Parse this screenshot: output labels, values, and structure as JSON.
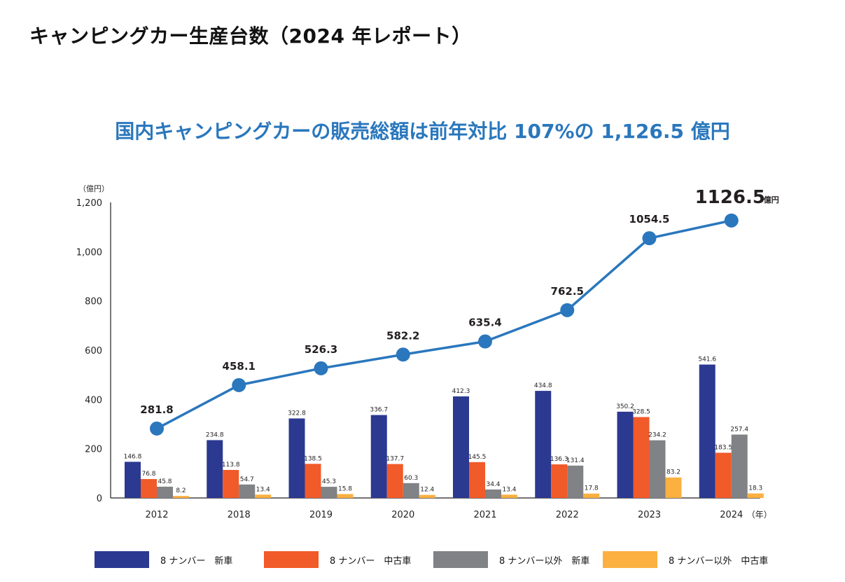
{
  "page_title": "キャンピングカー生産台数（2024 年レポート）",
  "chart_data": {
    "type": "bar+line",
    "title": "国内キャンピングカーの販売総額は前年対比 107%の 1,126.5 億円",
    "ylabel": "（億円）",
    "xlabel_unit": "（年）",
    "ylim": [
      0,
      1200
    ],
    "yticks": [
      0,
      200,
      400,
      600,
      800,
      1000,
      1200
    ],
    "ytick_labels": [
      "0",
      "200",
      "400",
      "600",
      "800",
      "1,000",
      "1,200"
    ],
    "categories": [
      "2012",
      "2018",
      "2019",
      "2020",
      "2021",
      "2022",
      "2023",
      "2024"
    ],
    "series": [
      {
        "name": "8 ナンバー　新車",
        "color": "#2b3990",
        "values": [
          146.8,
          234.8,
          322.8,
          336.7,
          412.3,
          434.8,
          350.2,
          541.6
        ],
        "labels": [
          "146.8",
          "234.8",
          "322.8",
          "336.7",
          "412.3",
          "434.8",
          "350.2",
          "541.6"
        ]
      },
      {
        "name": "8 ナンバー　中古車",
        "color": "#f15a29",
        "values": [
          76.8,
          113.8,
          138.5,
          137.7,
          145.5,
          136.3,
          328.5,
          183.5
        ],
        "labels": [
          "76.8",
          "113.8",
          "138.5",
          "137.7",
          "145.5",
          "136.3",
          "328.5",
          "183.5"
        ]
      },
      {
        "name": "8 ナンバー以外　新車",
        "color": "#808285",
        "values": [
          45.8,
          54.7,
          45.3,
          60.3,
          34.4,
          131.4,
          234.2,
          257.4
        ],
        "labels": [
          "45.8",
          "54.7",
          "45.3",
          "60.3",
          "34.4",
          "131.4",
          "234.2",
          "257.4"
        ]
      },
      {
        "name": "8 ナンバー以外　中古車",
        "color": "#fbb040",
        "values": [
          8.2,
          13.4,
          15.8,
          12.4,
          13.4,
          17.8,
          83.2,
          18.3
        ],
        "labels": [
          "8.2",
          "13.4",
          "15.8",
          "12.4",
          "13.4",
          "17.8",
          "83.2",
          "18.3"
        ]
      }
    ],
    "total_line": {
      "color": "#2a77bd",
      "values": [
        281.8,
        458.1,
        526.3,
        582.2,
        635.4,
        762.5,
        1054.5,
        1126.5
      ],
      "labels": [
        "281.8",
        "458.1",
        "526.3",
        "582.2",
        "635.4",
        "762.5",
        "1054.5",
        "1126.5"
      ],
      "last_unit": "億円"
    },
    "legend_position": "bottom",
    "grid": false
  }
}
